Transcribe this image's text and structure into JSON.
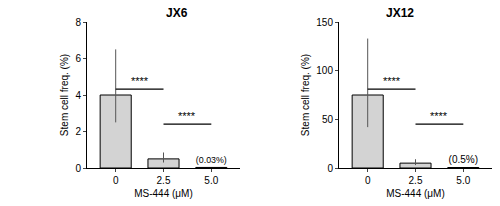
{
  "chart_data": [
    {
      "type": "bar",
      "title": "JX6",
      "x_label": "MS-444 (μM)",
      "y_label": "Stem cell freq. (%)",
      "categories": [
        "0",
        "2.5",
        "5.0"
      ],
      "values": [
        4.0,
        0.5,
        0.03
      ],
      "value_labels": [
        null,
        null,
        "(0.03%)"
      ],
      "error_plus": [
        2.5,
        0.35,
        null
      ],
      "error_minus": [
        1.5,
        0.2,
        null
      ],
      "color": "#d3d3d3",
      "ylim": [
        0,
        8
      ],
      "yticks": [
        0,
        2,
        4,
        6,
        8
      ],
      "grid": false,
      "significance": [
        {
          "from": "0",
          "to": "2.5",
          "text": "****"
        },
        {
          "from": "2.5",
          "to": "5.0",
          "text": "****"
        }
      ]
    },
    {
      "type": "bar",
      "title": "JX12",
      "x_label": "MS-444 (μM)",
      "y_label": "Stem cell freq. (%)",
      "categories": [
        "0",
        "2.5",
        "5.0"
      ],
      "values": [
        75,
        5,
        0.5
      ],
      "value_labels": [
        null,
        null,
        "(0.5%)"
      ],
      "error_plus": [
        58,
        4,
        null
      ],
      "error_minus": [
        33,
        2,
        null
      ],
      "color": "#d3d3d3",
      "ylim": [
        0,
        150
      ],
      "yticks": [
        0,
        50,
        100,
        150
      ],
      "grid": false,
      "significance": [
        {
          "from": "0",
          "to": "2.5",
          "text": "****"
        },
        {
          "from": "2.5",
          "to": "5.0",
          "text": "****"
        }
      ]
    }
  ]
}
